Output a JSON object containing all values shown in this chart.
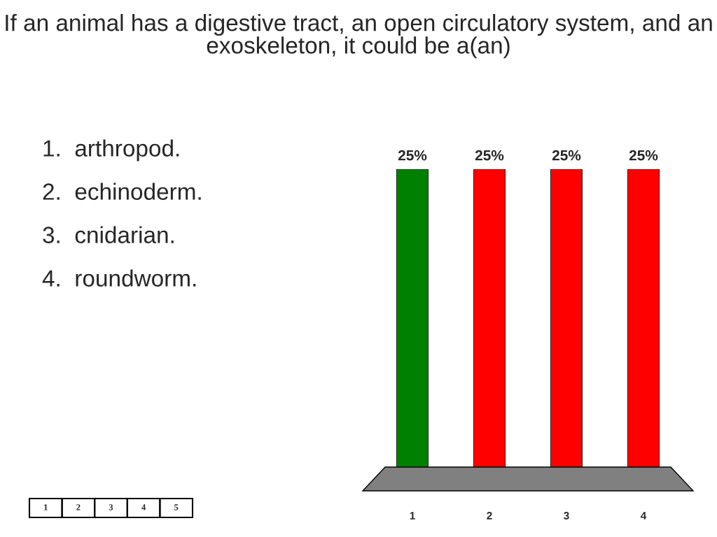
{
  "chart_data": {
    "type": "bar",
    "title": "If an animal has a digestive tract, an open circulatory system, and an exoskeleton, it could be a(an)",
    "categories": [
      "1",
      "2",
      "3",
      "4"
    ],
    "values": [
      25,
      25,
      25,
      25
    ],
    "colors": [
      "#008000",
      "#ff0000",
      "#ff0000",
      "#ff0000"
    ],
    "value_labels": [
      "25%",
      "25%",
      "25%",
      "25%"
    ],
    "annotations": [
      "1.  arthropod.",
      "2.  echinoderm.",
      "3.  cnidarian.",
      "4.  roundworm.",
      "1",
      "2",
      "3",
      "4",
      "5"
    ]
  }
}
